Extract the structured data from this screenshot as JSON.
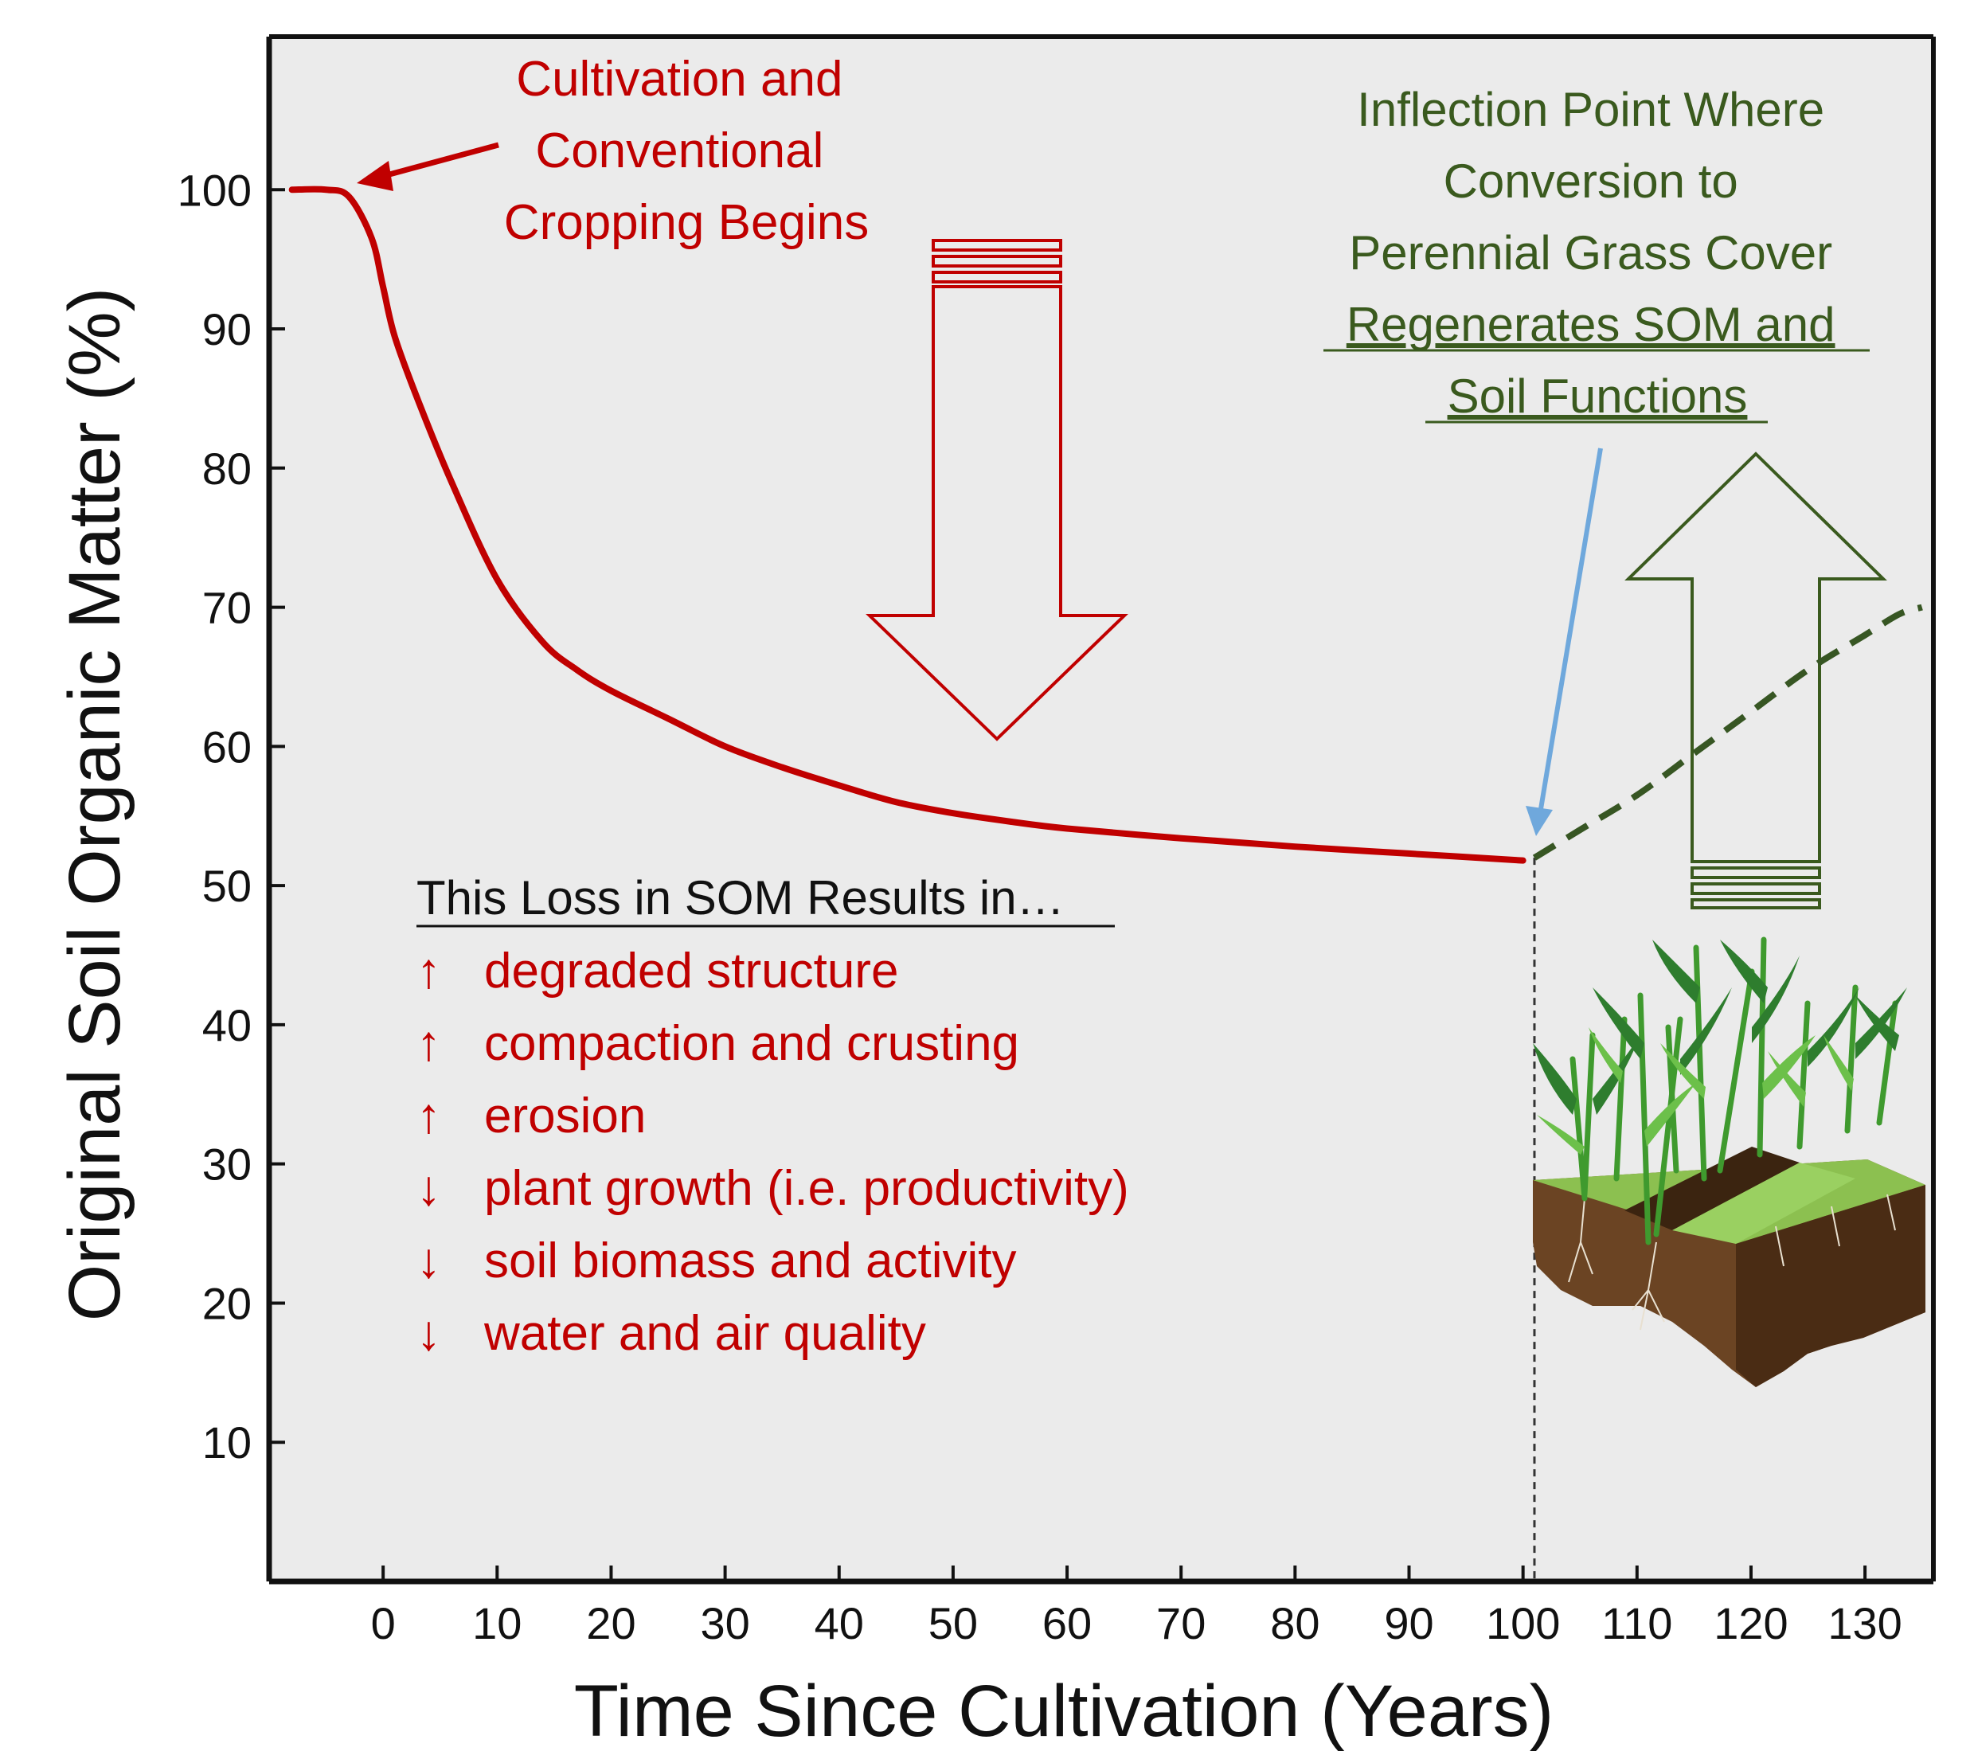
{
  "chart_data": {
    "type": "line",
    "xlabel": "Time Since Cultivation (Years)",
    "ylabel": "Original Soil Organic Matter (%)",
    "xlim": [
      -10,
      136
    ],
    "ylim": [
      0,
      111
    ],
    "x_ticks": [
      0,
      10,
      20,
      30,
      40,
      50,
      60,
      70,
      80,
      90,
      100,
      110,
      120,
      130
    ],
    "y_ticks": [
      10,
      20,
      30,
      40,
      50,
      60,
      70,
      80,
      90,
      100
    ],
    "grid": false,
    "series": [
      {
        "style": "solid",
        "x": [
          -8,
          -5,
          -3,
          -1,
          0,
          1,
          3,
          6,
          10,
          14,
          17,
          20,
          25,
          30,
          35,
          40,
          45,
          50,
          55,
          60,
          70,
          80,
          90,
          100
        ],
        "y": [
          100,
          100,
          99.5,
          96.5,
          93,
          89.5,
          85,
          79,
          72,
          67.5,
          65.5,
          64,
          62,
          60,
          58.5,
          57.2,
          56,
          55.2,
          54.6,
          54.1,
          53.4,
          52.8,
          52.3,
          51.8
        ]
      },
      {
        "style": "dashed",
        "x": [
          101,
          105,
          110,
          115,
          120,
          125,
          130,
          133,
          135
        ],
        "y": [
          52,
          54,
          56.5,
          59.5,
          62.5,
          65.5,
          68,
          69.5,
          70
        ]
      }
    ],
    "annotations": {
      "cultivation": {
        "lines": [
          "Cultivation and",
          "Conventional",
          "Cropping Begins"
        ],
        "points_to": {
          "x": -1,
          "y": 100.3
        }
      },
      "inflection": {
        "lines": [
          "Inflection Point Where",
          "Conversion to",
          "Perennial Grass Cover"
        ],
        "underlined_lines": [
          "Regenerates SOM and",
          "Soil Functions"
        ],
        "points_to": {
          "x": 101,
          "y": 53.5
        }
      },
      "loss_box": {
        "heading": "This Loss in SOM Results in…",
        "items": [
          {
            "arrow": "↑",
            "text": "degraded structure"
          },
          {
            "arrow": "↑",
            "text": "compaction and crusting"
          },
          {
            "arrow": "↑",
            "text": "erosion"
          },
          {
            "arrow": "↓",
            "text": "plant growth (i.e. productivity)"
          },
          {
            "arrow": "↓",
            "text": "soil biomass and activity"
          },
          {
            "arrow": "↓",
            "text": "water and air quality"
          }
        ]
      }
    }
  },
  "colors": {
    "red": "#c00000",
    "green": "#3a5a1e",
    "dashed_green": "#375623",
    "blue_arrow": "#6fa8dc",
    "plot_bg": "#ebebeb",
    "soil_dark": "#5b3a1e",
    "soil_light": "#7a4e2a",
    "grass_light": "#7cbf3a",
    "grass_dark": "#2e7d2e"
  },
  "icons": [
    "down-arrow-icon",
    "up-arrow-icon",
    "pointer-arrow-icon",
    "grass-soil-illustration-icon"
  ]
}
